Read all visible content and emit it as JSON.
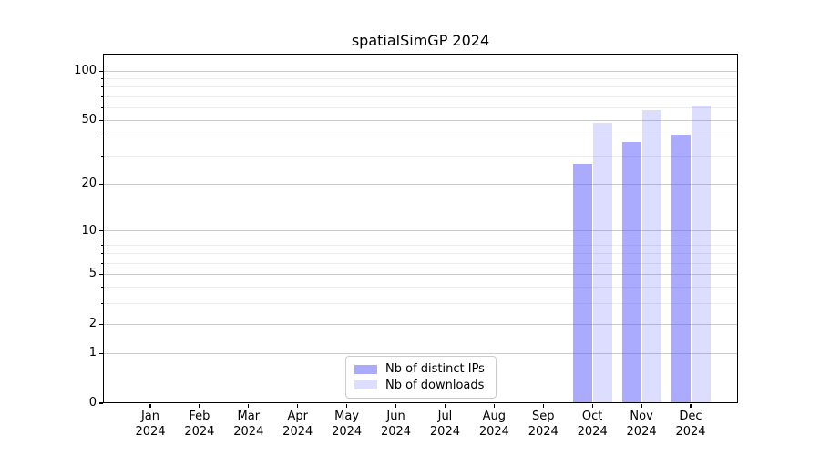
{
  "figure": {
    "background_color": "#ffffff",
    "accent_color": "#5555ff"
  },
  "chart_data": {
    "type": "bar",
    "title": "spatialSimGP 2024",
    "xlabel": "",
    "ylabel": "",
    "yscale": "log1p",
    "ylim": [
      0,
      128
    ],
    "grid": {
      "enabled": true,
      "major_color": "#cccccc",
      "minor_color": "#ececec"
    },
    "axis_color": "#000000",
    "y_major_ticks": [
      0,
      1,
      2,
      5,
      10,
      20,
      50,
      100
    ],
    "y_minor_ticks": [
      3,
      4,
      6,
      7,
      8,
      9,
      30,
      40,
      60,
      70,
      80,
      90
    ],
    "x_tick_months": [
      "Jan",
      "Feb",
      "Mar",
      "Apr",
      "May",
      "Jun",
      "Jul",
      "Aug",
      "Sep",
      "Oct",
      "Nov",
      "Dec"
    ],
    "x_tick_year": "2024",
    "categories": [
      "Jan 2024",
      "Feb 2024",
      "Mar 2024",
      "Apr 2024",
      "May 2024",
      "Jun 2024",
      "Jul 2024",
      "Aug 2024",
      "Sep 2024",
      "Oct 2024",
      "Nov 2024",
      "Dec 2024"
    ],
    "series": [
      {
        "name": "Nb of distinct IPs",
        "color": "#5555ff",
        "opacity": 0.5,
        "values": [
          0,
          0,
          0,
          0,
          0,
          0,
          0,
          0,
          0,
          27,
          37,
          41
        ]
      },
      {
        "name": "Nb of downloads",
        "color": "#5555ff",
        "opacity": 0.2,
        "values": [
          0,
          0,
          0,
          0,
          0,
          0,
          0,
          0,
          0,
          48,
          58,
          62
        ]
      }
    ],
    "legend": {
      "position": "lower center"
    }
  }
}
